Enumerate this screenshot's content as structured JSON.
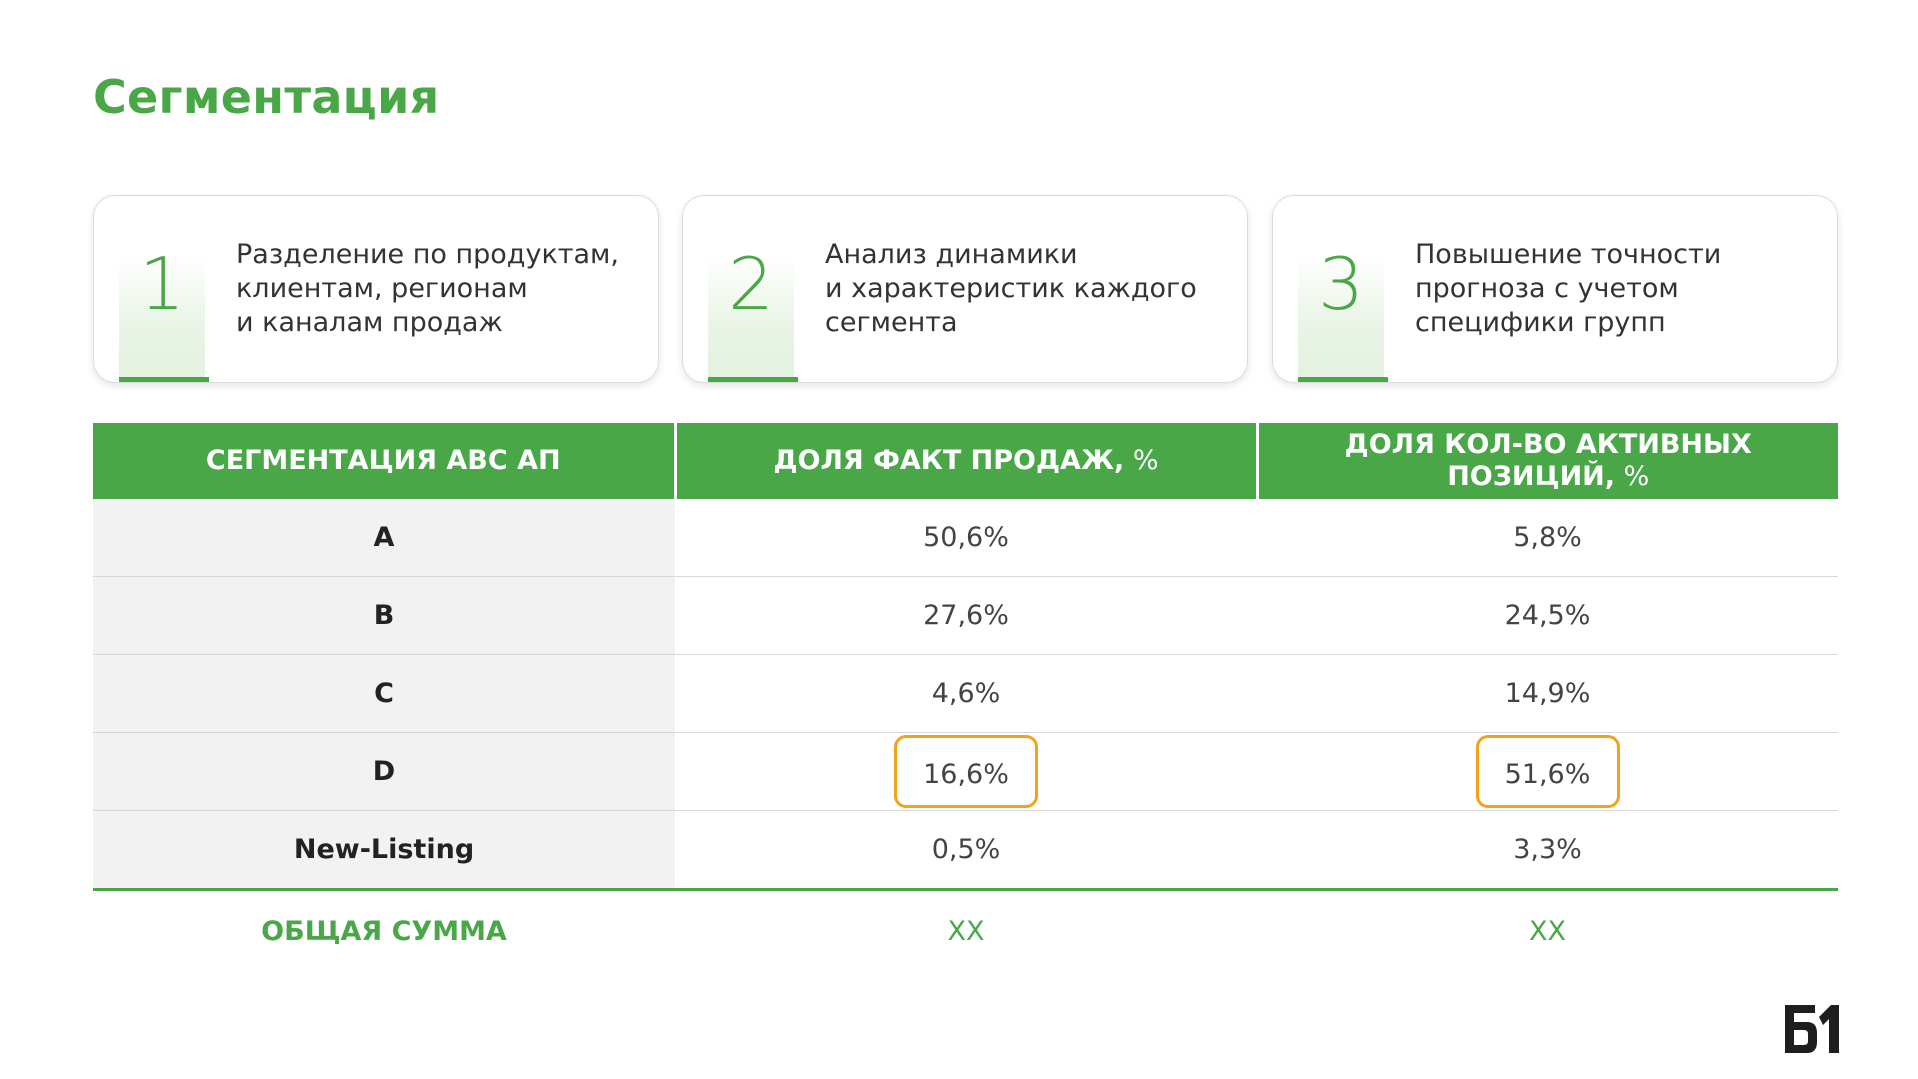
{
  "title": "Сегментация",
  "cards": [
    {
      "number": "1",
      "text": "Разделение по продуктам,\nклиентам, регионам\nи каналам продаж"
    },
    {
      "number": "2",
      "text": "Анализ динамики\nи характеристик каждого\nсегмента"
    },
    {
      "number": "3",
      "text": "Повышение точности\nпрогноза с учетом\nспецифики групп"
    }
  ],
  "table": {
    "headers": [
      {
        "label": "СЕГМЕНТАЦИЯ ABC АП",
        "unit": ""
      },
      {
        "label": "ДОЛЯ ФАКТ ПРОДАЖ,",
        "unit": " %"
      },
      {
        "label": "ДОЛЯ КОЛ-ВО АКТИВНЫХ ПОЗИЦИЙ,",
        "unit": " %"
      }
    ],
    "rows": [
      {
        "segment": "A",
        "sales_share": "50,6%",
        "active_share": "5,8%"
      },
      {
        "segment": "B",
        "sales_share": "27,6%",
        "active_share": "24,5%"
      },
      {
        "segment": "C",
        "sales_share": "4,6%",
        "active_share": "14,9%"
      },
      {
        "segment": "D",
        "sales_share": "16,6%",
        "active_share": "51,6%"
      },
      {
        "segment": "New-Listing",
        "sales_share": "0,5%",
        "active_share": "3,3%"
      }
    ],
    "total": {
      "label": "ОБЩАЯ СУММА",
      "sales_share": "XX",
      "active_share": "XX"
    }
  },
  "colors": {
    "accent": "#4aa748",
    "highlight": "#f3a21b"
  },
  "logo": {
    "icon": "b1-logo",
    "text": "Б1"
  }
}
